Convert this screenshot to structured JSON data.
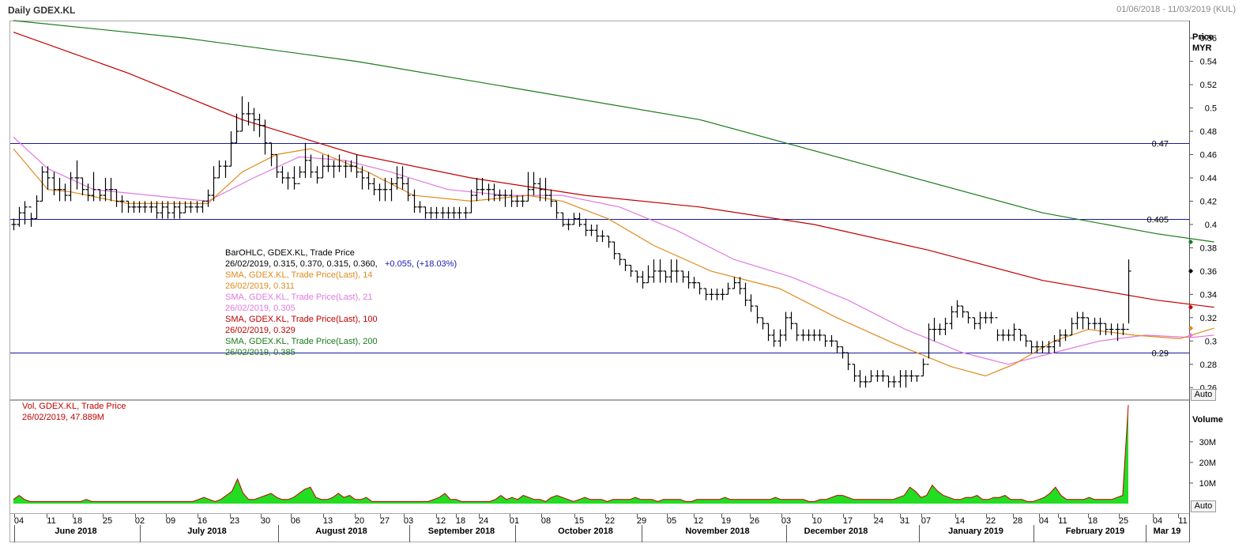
{
  "header": {
    "title": "Daily GDEX.KL",
    "date_range": "01/06/2018 - 11/03/2019 (KUL)"
  },
  "price_axis": {
    "title": "Price",
    "unit": "MYR",
    "ticks": [
      "0.56",
      "0.54",
      "0.52",
      "0.5",
      "0.48",
      "0.46",
      "0.44",
      "0.42",
      "0.4",
      "0.38",
      "0.36",
      "0.34",
      "0.32",
      "0.3",
      "0.28",
      "0.26"
    ],
    "auto_label": "Auto"
  },
  "volume_axis": {
    "title": "Volume",
    "ticks": [
      "30M",
      "20M",
      "10M"
    ],
    "auto_label": "Auto"
  },
  "hlines": [
    {
      "label": "0.47",
      "value": 0.47
    },
    {
      "label": "0.405",
      "value": 0.405
    },
    {
      "label": "0.29",
      "value": 0.29
    }
  ],
  "legend": [
    {
      "line1": "BarOHLC, GDEX.KL, Trade Price",
      "line2": "26/02/2019, 0.315, 0.370, 0.315, 0.360,",
      "line2b": "+0.055, (+18.03%)",
      "color": "#000000"
    },
    {
      "line1": "SMA, GDEX.KL, Trade Price(Last),  14",
      "line2": "26/02/2019, 0.311",
      "color": "#e08a1e"
    },
    {
      "line1": "SMA, GDEX.KL, Trade Price(Last),  21",
      "line2": "26/02/2019, 0.305",
      "color": "#e07ae0"
    },
    {
      "line1": "SMA, GDEX.KL, Trade Price(Last),  100",
      "line2": "26/02/2019, 0.329",
      "color": "#c00000"
    },
    {
      "line1": "SMA, GDEX.KL, Trade Price(Last),  200",
      "line2": "26/02/2019, 0.385",
      "color": "#1a7a1a"
    }
  ],
  "volume_legend": {
    "line1": "Vol, GDEX.KL, Trade Price",
    "line2": "26/02/2019, 47.889M"
  },
  "x_axis": {
    "day_ticks": [
      "04",
      "11",
      "18",
      "25",
      "02",
      "09",
      "16",
      "23",
      "30",
      "06",
      "13",
      "20",
      "27",
      "03",
      "12",
      "18",
      "24",
      "01",
      "08",
      "15",
      "22",
      "29",
      "05",
      "12",
      "19",
      "26",
      "03",
      "10",
      "17",
      "24",
      "31",
      "07",
      "14",
      "22",
      "28",
      "04",
      "11",
      "18",
      "25",
      "04",
      "11"
    ],
    "months": [
      "June 2018",
      "July 2018",
      "August 2018",
      "September 2018",
      "October 2018",
      "November 2018",
      "December 2018",
      "January 2019",
      "February 2019",
      "Mar 19"
    ]
  },
  "chart_data": {
    "type": "ohlc",
    "title": "Daily GDEX.KL",
    "ylabel": "Price MYR",
    "ylim": [
      0.25,
      0.575
    ],
    "bars_hlc": [
      [
        0.405,
        0.395,
        0.4
      ],
      [
        0.415,
        0.398,
        0.41
      ],
      [
        0.42,
        0.4,
        0.415
      ],
      [
        0.41,
        0.398,
        0.405
      ],
      [
        0.425,
        0.405,
        0.42
      ],
      [
        0.45,
        0.42,
        0.445
      ],
      [
        0.45,
        0.43,
        0.44
      ],
      [
        0.445,
        0.425,
        0.43
      ],
      [
        0.44,
        0.42,
        0.43
      ],
      [
        0.435,
        0.42,
        0.425
      ],
      [
        0.445,
        0.42,
        0.44
      ],
      [
        0.455,
        0.43,
        0.44
      ],
      [
        0.44,
        0.425,
        0.43
      ],
      [
        0.435,
        0.42,
        0.425
      ],
      [
        0.445,
        0.42,
        0.43
      ],
      [
        0.43,
        0.42,
        0.425
      ],
      [
        0.44,
        0.42,
        0.43
      ],
      [
        0.44,
        0.42,
        0.43
      ],
      [
        0.43,
        0.415,
        0.42
      ],
      [
        0.425,
        0.41,
        0.42
      ],
      [
        0.42,
        0.41,
        0.415
      ],
      [
        0.42,
        0.41,
        0.415
      ],
      [
        0.42,
        0.41,
        0.415
      ],
      [
        0.42,
        0.41,
        0.415
      ],
      [
        0.42,
        0.41,
        0.415
      ],
      [
        0.42,
        0.405,
        0.41
      ],
      [
        0.42,
        0.405,
        0.415
      ],
      [
        0.42,
        0.405,
        0.41
      ],
      [
        0.42,
        0.405,
        0.415
      ],
      [
        0.42,
        0.405,
        0.41
      ],
      [
        0.42,
        0.41,
        0.415
      ],
      [
        0.42,
        0.41,
        0.415
      ],
      [
        0.42,
        0.41,
        0.415
      ],
      [
        0.42,
        0.41,
        0.42
      ],
      [
        0.43,
        0.415,
        0.425
      ],
      [
        0.45,
        0.42,
        0.44
      ],
      [
        0.455,
        0.44,
        0.45
      ],
      [
        0.455,
        0.44,
        0.45
      ],
      [
        0.48,
        0.45,
        0.47
      ],
      [
        0.495,
        0.47,
        0.48
      ],
      [
        0.51,
        0.48,
        0.495
      ],
      [
        0.505,
        0.485,
        0.495
      ],
      [
        0.5,
        0.48,
        0.49
      ],
      [
        0.495,
        0.475,
        0.485
      ],
      [
        0.49,
        0.46,
        0.47
      ],
      [
        0.47,
        0.45,
        0.46
      ],
      [
        0.46,
        0.44,
        0.445
      ],
      [
        0.45,
        0.435,
        0.44
      ],
      [
        0.445,
        0.43,
        0.44
      ],
      [
        0.45,
        0.43,
        0.435
      ],
      [
        0.45,
        0.44,
        0.445
      ],
      [
        0.47,
        0.44,
        0.455
      ],
      [
        0.46,
        0.44,
        0.445
      ],
      [
        0.45,
        0.435,
        0.44
      ],
      [
        0.46,
        0.44,
        0.45
      ],
      [
        0.46,
        0.445,
        0.45
      ],
      [
        0.455,
        0.44,
        0.45
      ],
      [
        0.46,
        0.445,
        0.45
      ],
      [
        0.455,
        0.44,
        0.45
      ],
      [
        0.455,
        0.445,
        0.45
      ],
      [
        0.46,
        0.44,
        0.445
      ],
      [
        0.45,
        0.43,
        0.44
      ],
      [
        0.445,
        0.43,
        0.435
      ],
      [
        0.44,
        0.425,
        0.43
      ],
      [
        0.435,
        0.42,
        0.43
      ],
      [
        0.44,
        0.42,
        0.43
      ],
      [
        0.44,
        0.42,
        0.435
      ],
      [
        0.45,
        0.43,
        0.44
      ],
      [
        0.45,
        0.43,
        0.435
      ],
      [
        0.44,
        0.42,
        0.425
      ],
      [
        0.43,
        0.41,
        0.415
      ],
      [
        0.42,
        0.41,
        0.415
      ],
      [
        0.415,
        0.405,
        0.41
      ],
      [
        0.415,
        0.405,
        0.41
      ],
      [
        0.415,
        0.405,
        0.41
      ],
      [
        0.415,
        0.405,
        0.41
      ],
      [
        0.415,
        0.405,
        0.41
      ],
      [
        0.415,
        0.405,
        0.41
      ],
      [
        0.415,
        0.405,
        0.41
      ],
      [
        0.415,
        0.405,
        0.41
      ],
      [
        0.43,
        0.41,
        0.425
      ],
      [
        0.44,
        0.42,
        0.43
      ],
      [
        0.44,
        0.425,
        0.43
      ],
      [
        0.435,
        0.42,
        0.43
      ],
      [
        0.435,
        0.42,
        0.425
      ],
      [
        0.43,
        0.42,
        0.425
      ],
      [
        0.43,
        0.415,
        0.425
      ],
      [
        0.43,
        0.415,
        0.42
      ],
      [
        0.425,
        0.415,
        0.42
      ],
      [
        0.425,
        0.415,
        0.42
      ],
      [
        0.445,
        0.42,
        0.43
      ],
      [
        0.445,
        0.425,
        0.435
      ],
      [
        0.44,
        0.42,
        0.43
      ],
      [
        0.44,
        0.42,
        0.425
      ],
      [
        0.43,
        0.415,
        0.42
      ],
      [
        0.42,
        0.405,
        0.41
      ],
      [
        0.41,
        0.398,
        0.4
      ],
      [
        0.405,
        0.395,
        0.4
      ],
      [
        0.41,
        0.4,
        0.405
      ],
      [
        0.41,
        0.398,
        0.4
      ],
      [
        0.405,
        0.39,
        0.395
      ],
      [
        0.4,
        0.39,
        0.395
      ],
      [
        0.4,
        0.385,
        0.39
      ],
      [
        0.395,
        0.385,
        0.39
      ],
      [
        0.39,
        0.38,
        0.385
      ],
      [
        0.385,
        0.37,
        0.375
      ],
      [
        0.375,
        0.365,
        0.37
      ],
      [
        0.37,
        0.36,
        0.365
      ],
      [
        0.365,
        0.355,
        0.36
      ],
      [
        0.36,
        0.35,
        0.355
      ],
      [
        0.36,
        0.345,
        0.35
      ],
      [
        0.365,
        0.35,
        0.355
      ],
      [
        0.37,
        0.35,
        0.36
      ],
      [
        0.37,
        0.35,
        0.36
      ],
      [
        0.36,
        0.35,
        0.355
      ],
      [
        0.37,
        0.35,
        0.36
      ],
      [
        0.37,
        0.35,
        0.36
      ],
      [
        0.36,
        0.35,
        0.355
      ],
      [
        0.36,
        0.345,
        0.35
      ],
      [
        0.355,
        0.345,
        0.35
      ],
      [
        0.35,
        0.34,
        0.345
      ],
      [
        0.345,
        0.335,
        0.34
      ],
      [
        0.345,
        0.335,
        0.34
      ],
      [
        0.345,
        0.335,
        0.34
      ],
      [
        0.345,
        0.335,
        0.34
      ],
      [
        0.35,
        0.34,
        0.345
      ],
      [
        0.355,
        0.345,
        0.35
      ],
      [
        0.355,
        0.34,
        0.345
      ],
      [
        0.35,
        0.33,
        0.335
      ],
      [
        0.34,
        0.325,
        0.33
      ],
      [
        0.33,
        0.315,
        0.32
      ],
      [
        0.32,
        0.31,
        0.315
      ],
      [
        0.315,
        0.3,
        0.305
      ],
      [
        0.31,
        0.295,
        0.3
      ],
      [
        0.31,
        0.295,
        0.305
      ],
      [
        0.325,
        0.3,
        0.32
      ],
      [
        0.325,
        0.31,
        0.315
      ],
      [
        0.315,
        0.3,
        0.305
      ],
      [
        0.31,
        0.3,
        0.305
      ],
      [
        0.31,
        0.3,
        0.305
      ],
      [
        0.31,
        0.3,
        0.305
      ],
      [
        0.31,
        0.3,
        0.305
      ],
      [
        0.305,
        0.295,
        0.3
      ],
      [
        0.305,
        0.295,
        0.3
      ],
      [
        0.3,
        0.29,
        0.295
      ],
      [
        0.295,
        0.285,
        0.29
      ],
      [
        0.29,
        0.275,
        0.28
      ],
      [
        0.28,
        0.265,
        0.27
      ],
      [
        0.275,
        0.26,
        0.265
      ],
      [
        0.27,
        0.26,
        0.265
      ],
      [
        0.275,
        0.265,
        0.27
      ],
      [
        0.275,
        0.265,
        0.27
      ],
      [
        0.275,
        0.265,
        0.27
      ],
      [
        0.27,
        0.26,
        0.265
      ],
      [
        0.27,
        0.26,
        0.265
      ],
      [
        0.275,
        0.26,
        0.27
      ],
      [
        0.275,
        0.26,
        0.27
      ],
      [
        0.275,
        0.265,
        0.27
      ],
      [
        0.27,
        0.265,
        0.27
      ],
      [
        0.285,
        0.27,
        0.28
      ],
      [
        0.315,
        0.285,
        0.31
      ],
      [
        0.32,
        0.3,
        0.31
      ],
      [
        0.315,
        0.305,
        0.31
      ],
      [
        0.32,
        0.305,
        0.315
      ],
      [
        0.33,
        0.31,
        0.325
      ],
      [
        0.335,
        0.32,
        0.33
      ],
      [
        0.33,
        0.32,
        0.325
      ],
      [
        0.325,
        0.315,
        0.32
      ],
      [
        0.32,
        0.31,
        0.315
      ],
      [
        0.325,
        0.31,
        0.32
      ],
      [
        0.325,
        0.315,
        0.32
      ],
      [
        0.325,
        0.315,
        0.32
      ],
      [
        0.31,
        0.3,
        0.305
      ],
      [
        0.31,
        0.3,
        0.305
      ],
      [
        0.31,
        0.3,
        0.305
      ],
      [
        0.315,
        0.3,
        0.31
      ],
      [
        0.31,
        0.3,
        0.305
      ],
      [
        0.305,
        0.295,
        0.3
      ],
      [
        0.3,
        0.29,
        0.295
      ],
      [
        0.3,
        0.29,
        0.295
      ],
      [
        0.3,
        0.29,
        0.295
      ],
      [
        0.3,
        0.29,
        0.295
      ],
      [
        0.305,
        0.29,
        0.3
      ],
      [
        0.31,
        0.295,
        0.305
      ],
      [
        0.31,
        0.3,
        0.305
      ],
      [
        0.32,
        0.305,
        0.315
      ],
      [
        0.325,
        0.31,
        0.32
      ],
      [
        0.325,
        0.31,
        0.32
      ],
      [
        0.32,
        0.31,
        0.315
      ],
      [
        0.32,
        0.31,
        0.315
      ],
      [
        0.32,
        0.305,
        0.315
      ],
      [
        0.315,
        0.305,
        0.31
      ],
      [
        0.315,
        0.305,
        0.31
      ],
      [
        0.315,
        0.3,
        0.31
      ],
      [
        0.315,
        0.305,
        0.31
      ],
      [
        0.37,
        0.315,
        0.36
      ]
    ],
    "sma14_points": [
      [
        0,
        0.465
      ],
      [
        6,
        0.43
      ],
      [
        10,
        0.428
      ],
      [
        20,
        0.418
      ],
      [
        34,
        0.418
      ],
      [
        40,
        0.445
      ],
      [
        46,
        0.46
      ],
      [
        52,
        0.465
      ],
      [
        62,
        0.445
      ],
      [
        70,
        0.425
      ],
      [
        80,
        0.42
      ],
      [
        90,
        0.425
      ],
      [
        96,
        0.42
      ],
      [
        104,
        0.405
      ],
      [
        112,
        0.382
      ],
      [
        122,
        0.36
      ],
      [
        134,
        0.345
      ],
      [
        144,
        0.32
      ],
      [
        154,
        0.298
      ],
      [
        164,
        0.278
      ],
      [
        170,
        0.27
      ],
      [
        175,
        0.28
      ],
      [
        182,
        0.3
      ],
      [
        188,
        0.31
      ],
      [
        196,
        0.305
      ],
      [
        204,
        0.302
      ],
      [
        210,
        0.311
      ]
    ],
    "sma21_points": [
      [
        0,
        0.475
      ],
      [
        6,
        0.448
      ],
      [
        14,
        0.43
      ],
      [
        24,
        0.425
      ],
      [
        34,
        0.42
      ],
      [
        42,
        0.44
      ],
      [
        50,
        0.458
      ],
      [
        58,
        0.455
      ],
      [
        66,
        0.445
      ],
      [
        76,
        0.43
      ],
      [
        86,
        0.425
      ],
      [
        96,
        0.425
      ],
      [
        106,
        0.415
      ],
      [
        116,
        0.395
      ],
      [
        126,
        0.37
      ],
      [
        136,
        0.355
      ],
      [
        146,
        0.335
      ],
      [
        156,
        0.31
      ],
      [
        166,
        0.29
      ],
      [
        174,
        0.28
      ],
      [
        182,
        0.29
      ],
      [
        190,
        0.3
      ],
      [
        198,
        0.305
      ],
      [
        206,
        0.303
      ],
      [
        210,
        0.305
      ]
    ],
    "sma100_points": [
      [
        0,
        0.565
      ],
      [
        20,
        0.53
      ],
      [
        40,
        0.49
      ],
      [
        60,
        0.46
      ],
      [
        80,
        0.44
      ],
      [
        100,
        0.425
      ],
      [
        120,
        0.415
      ],
      [
        140,
        0.4
      ],
      [
        160,
        0.378
      ],
      [
        180,
        0.352
      ],
      [
        200,
        0.335
      ],
      [
        210,
        0.329
      ]
    ],
    "sma200_points": [
      [
        0,
        0.575
      ],
      [
        30,
        0.56
      ],
      [
        60,
        0.54
      ],
      [
        90,
        0.515
      ],
      [
        120,
        0.49
      ],
      [
        150,
        0.45
      ],
      [
        180,
        0.41
      ],
      [
        200,
        0.392
      ],
      [
        210,
        0.385
      ]
    ],
    "volume_M": [
      2,
      4,
      2,
      1,
      1,
      1,
      1,
      1,
      1,
      1,
      1,
      1,
      1,
      2,
      1,
      1,
      1,
      1,
      1,
      1,
      1,
      1,
      1,
      1,
      1,
      1,
      1,
      1,
      1,
      1,
      1,
      1,
      1,
      2,
      3,
      2,
      1,
      2,
      4,
      6,
      12,
      5,
      2,
      2,
      3,
      4,
      5,
      3,
      2,
      2,
      3,
      5,
      7,
      8,
      3,
      2,
      2,
      3,
      5,
      3,
      4,
      2,
      2,
      3,
      1,
      1,
      1,
      1,
      1,
      1,
      1,
      1,
      1,
      1,
      1,
      2,
      3,
      5,
      2,
      2,
      1,
      1,
      1,
      1,
      1,
      1,
      2,
      4,
      2,
      3,
      2,
      4,
      3,
      2,
      2,
      1,
      3,
      4,
      3,
      2,
      1,
      2,
      3,
      2,
      2,
      2,
      1,
      2,
      2,
      2,
      2,
      3,
      2,
      2,
      2,
      1,
      2,
      2,
      2,
      2,
      1,
      1,
      2,
      2,
      2,
      2,
      2,
      3,
      2,
      2,
      2,
      2,
      2,
      2,
      2,
      2,
      3,
      2,
      2,
      2,
      2,
      2,
      1,
      1,
      2,
      2,
      3,
      4,
      4,
      3,
      2,
      2,
      2,
      2,
      2,
      2,
      2,
      2,
      3,
      4,
      8,
      6,
      3,
      4,
      9,
      6,
      4,
      3,
      2,
      2,
      3,
      3,
      4,
      2,
      2,
      3,
      3,
      4,
      2,
      2,
      2,
      1,
      1,
      2,
      3,
      5,
      8,
      4,
      2,
      2,
      2,
      2,
      3,
      2,
      2,
      2,
      2,
      3,
      4,
      47.889
    ],
    "volume_ylim": [
      0,
      48
    ]
  }
}
